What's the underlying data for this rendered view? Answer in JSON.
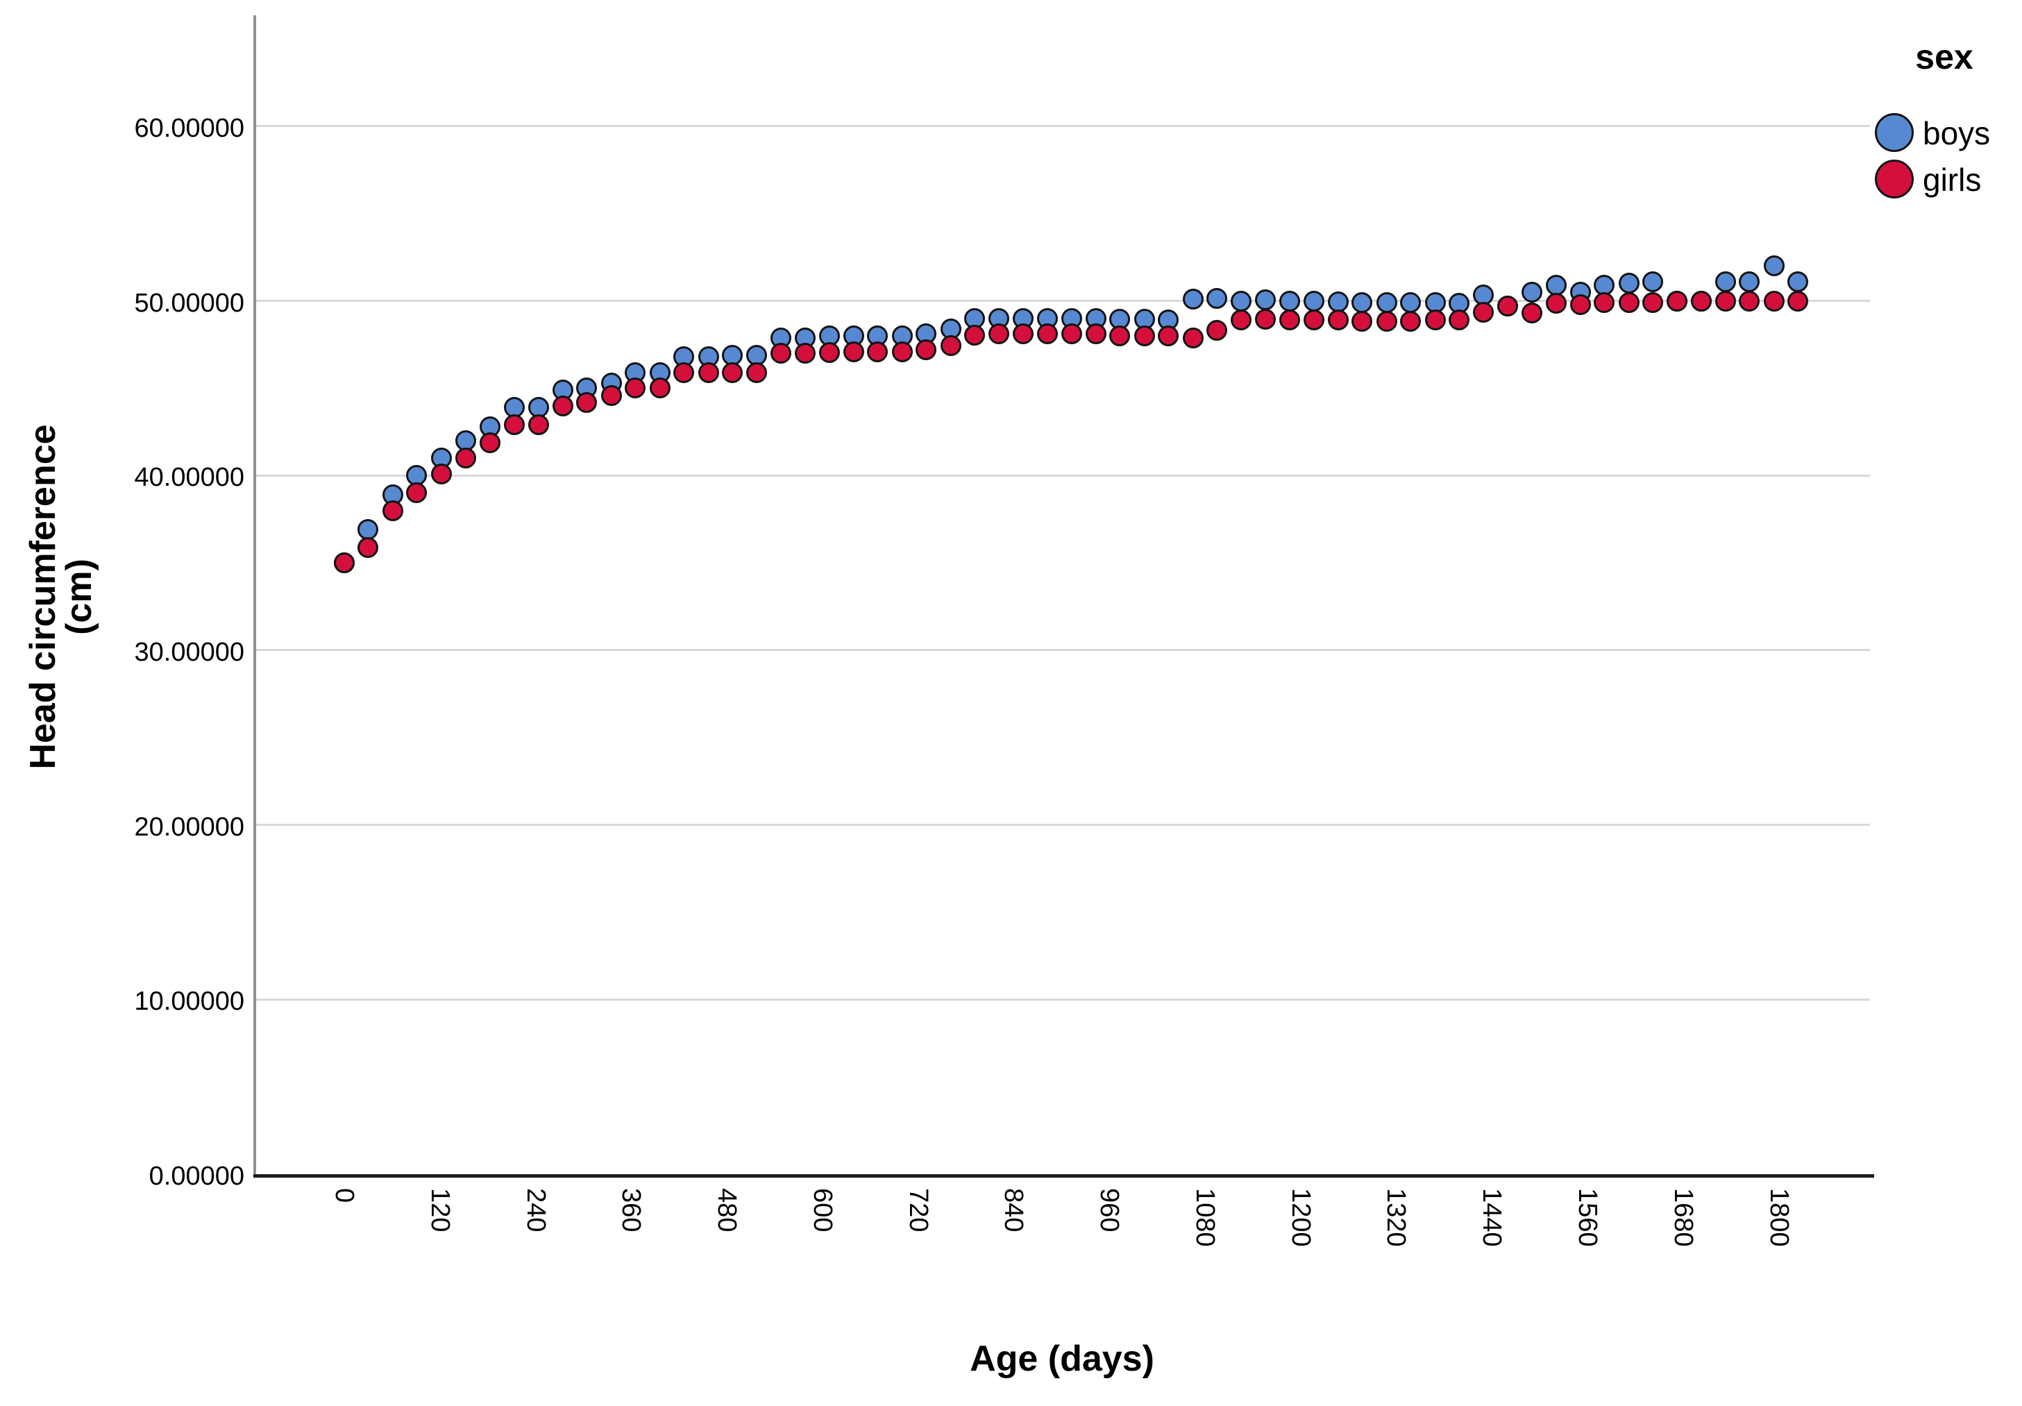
{
  "chart_data": {
    "type": "scatter",
    "title": "",
    "xlabel": "Age (days)",
    "ylabel": "Head circumference (cm)",
    "xlim": [
      0,
      1915
    ],
    "ylim": [
      0,
      66.35
    ],
    "grid": "horizontal-only",
    "gridline_color": "#d8d8d8",
    "legend_title": "sex",
    "legend_position": "top-right-outside",
    "x_tick_labels": [
      "0",
      "120",
      "240",
      "360",
      "480",
      "600",
      "720",
      "840",
      "960",
      "1080",
      "1200",
      "1320",
      "1440",
      "1560",
      "1680",
      "1800"
    ],
    "x_tick_values": [
      0,
      120,
      240,
      360,
      480,
      600,
      720,
      840,
      960,
      1080,
      1200,
      1320,
      1440,
      1560,
      1680,
      1800
    ],
    "y_tick_labels": [
      "0.00000",
      "10.00000",
      "20.00000",
      "30.00000",
      "40.00000",
      "50.00000",
      "60.00000"
    ],
    "y_tick_values": [
      0,
      10,
      20,
      30,
      40,
      50,
      60
    ],
    "x_days": [
      0,
      30,
      61,
      91,
      122,
      152,
      183,
      213,
      244,
      274,
      304,
      335,
      365,
      396,
      426,
      457,
      487,
      517,
      548,
      578,
      609,
      639,
      669,
      700,
      730,
      761,
      791,
      821,
      852,
      882,
      913,
      943,
      973,
      1004,
      1034,
      1065,
      1095,
      1125,
      1156,
      1186,
      1217,
      1247,
      1277,
      1308,
      1338,
      1369,
      1399,
      1429,
      1460,
      1490,
      1521,
      1551,
      1581,
      1612,
      1642,
      1672,
      1703,
      1733,
      1763,
      1794,
      1824
    ],
    "series": [
      {
        "name": "boys",
        "color": "#5789D2",
        "marker": "circle",
        "values": [
          35,
          36.9,
          38.9,
          40,
          41,
          42,
          42.8,
          43.9,
          43.9,
          44.9,
          45,
          45.3,
          45.9,
          45.9,
          46.8,
          46.8,
          46.9,
          46.9,
          47.9,
          47.9,
          48,
          48,
          48,
          48,
          48.1,
          48.4,
          49,
          49,
          49,
          49,
          49,
          49,
          48.95,
          48.95,
          48.9,
          50.1,
          50.15,
          50,
          50.05,
          50,
          50,
          49.95,
          49.9,
          49.9,
          49.9,
          49.9,
          49.85,
          50.35,
          49.7,
          50.5,
          50.9,
          50.5,
          50.9,
          51,
          51.1,
          50,
          50,
          51.1,
          51.1,
          52,
          51.1
        ]
      },
      {
        "name": "girls",
        "color": "#D50F3C",
        "marker": "circle",
        "values": [
          35,
          35.9,
          38,
          39,
          40.1,
          41,
          41.9,
          42.9,
          42.9,
          44,
          44.2,
          44.6,
          45,
          45,
          45.9,
          45.9,
          45.9,
          45.9,
          47,
          47,
          47.05,
          47.1,
          47.1,
          47.1,
          47.2,
          47.45,
          48.05,
          48.1,
          48.1,
          48.1,
          48.1,
          48.1,
          48,
          48,
          48,
          47.9,
          48.3,
          48.9,
          48.95,
          48.9,
          48.9,
          48.9,
          48.85,
          48.85,
          48.85,
          48.9,
          48.9,
          49.35,
          49.7,
          49.3,
          49.85,
          49.8,
          49.9,
          49.9,
          49.9,
          50,
          50,
          50,
          50,
          50,
          50
        ]
      }
    ]
  },
  "colors": {
    "axis_line_y": "#8f8f8f",
    "axis_line_x": "#1b1b1b",
    "marker_outline": "#141414",
    "text": "#000000",
    "background": "#ffffff"
  }
}
